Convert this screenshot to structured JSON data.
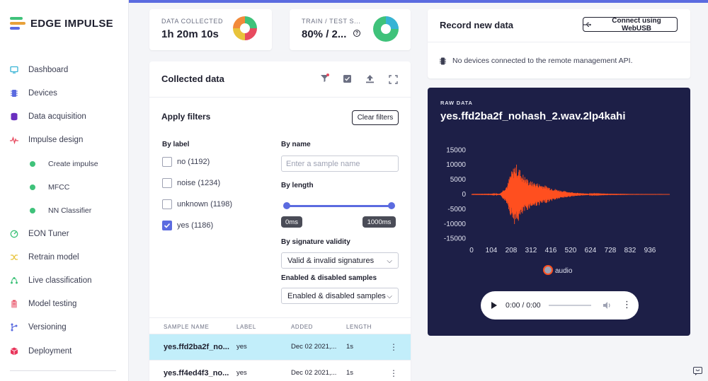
{
  "brand": {
    "name": "EDGE IMPULSE",
    "colors": [
      "#3fc27a",
      "#e8a13a",
      "#5b6be0"
    ]
  },
  "sidebar": {
    "items": [
      {
        "label": "Dashboard",
        "icon": "monitor-icon",
        "color": "#37b3d5"
      },
      {
        "label": "Devices",
        "icon": "chip-icon",
        "color": "#5b6be0"
      },
      {
        "label": "Data acquisition",
        "icon": "database-icon",
        "color": "#6a2fbf"
      },
      {
        "label": "Impulse design",
        "icon": "pulse-icon",
        "color": "#e84a5f"
      },
      {
        "label": "EON Tuner",
        "icon": "tuner-icon",
        "color": "#3fc27a"
      },
      {
        "label": "Retrain model",
        "icon": "shuffle-icon",
        "color": "#e8c33a"
      },
      {
        "label": "Live classification",
        "icon": "live-icon",
        "color": "#3fc27a"
      },
      {
        "label": "Model testing",
        "icon": "clipboard-icon",
        "color": "#e84a5f"
      },
      {
        "label": "Versioning",
        "icon": "branch-icon",
        "color": "#5b6be0"
      },
      {
        "label": "Deployment",
        "icon": "box-icon",
        "color": "#e8345a"
      }
    ],
    "sub_items": [
      {
        "label": "Create impulse"
      },
      {
        "label": "MFCC"
      },
      {
        "label": "NN Classifier"
      }
    ]
  },
  "stats": {
    "data_collected_label": "DATA COLLECTED",
    "data_collected_value": "1h 20m 10s",
    "train_test_label": "TRAIN / TEST S...",
    "train_test_value": "80% / 2...",
    "help_glyph": "?"
  },
  "collected": {
    "title": "Collected data",
    "filters_title": "Apply filters",
    "clear_filters": "Clear filters",
    "by_label": "By label",
    "labels": [
      {
        "text": "no (1192)",
        "checked": false
      },
      {
        "text": "noise (1234)",
        "checked": false
      },
      {
        "text": "unknown (1198)",
        "checked": false
      },
      {
        "text": "yes (1186)",
        "checked": true
      }
    ],
    "by_name": "By name",
    "name_placeholder": "Enter a sample name",
    "by_length": "By length",
    "length_min": "0ms",
    "length_max": "1000ms",
    "by_signature": "By signature validity",
    "signature_value": "Valid & invalid signatures",
    "enabled_label": "Enabled & disabled samples",
    "enabled_value": "Enabled & disabled samples",
    "table": {
      "headers": [
        "SAMPLE NAME",
        "LABEL",
        "ADDED",
        "LENGTH"
      ],
      "rows": [
        {
          "name": "yes.ffd2ba2f_no...",
          "label": "yes",
          "added": "Dec 02 2021,...",
          "length": "1s",
          "selected": true
        },
        {
          "name": "yes.ff4ed4f3_no...",
          "label": "yes",
          "added": "Dec 02 2021,...",
          "length": "1s",
          "selected": false
        }
      ]
    }
  },
  "record": {
    "title": "Record new data",
    "connect_button": "Connect using WebUSB",
    "no_devices": "No devices connected to the remote management API."
  },
  "raw_data": {
    "label": "RAW DATA",
    "sample_name": "yes.ffd2ba2f_nohash_2.wav.2lp4kahi",
    "legend": "audio",
    "player_time": "0:00 / 0:00",
    "series_color": "#ff4f1f"
  },
  "chart_data": {
    "type": "line",
    "title": "",
    "xlabel": "",
    "ylabel": "",
    "x_ticks": [
      0,
      104,
      208,
      312,
      416,
      520,
      624,
      728,
      832,
      936
    ],
    "y_ticks": [
      15000,
      10000,
      5000,
      0,
      -5000,
      -10000,
      -15000
    ],
    "ylim": [
      -17000,
      17000
    ],
    "xlim": [
      0,
      1040
    ],
    "series": [
      {
        "name": "audio",
        "x": [
          0,
          104,
          150,
          190,
          200,
          215,
          230,
          250,
          270,
          290,
          312,
          350,
          380,
          416,
          450,
          480,
          520,
          560,
          600,
          624,
          680,
          728,
          800,
          832,
          900,
          936,
          990,
          1040
        ],
        "amplitude": [
          60,
          80,
          300,
          3500,
          6500,
          8500,
          10800,
          9000,
          7000,
          5500,
          4500,
          3800,
          3200,
          2400,
          1700,
          1200,
          800,
          500,
          300,
          200,
          120,
          80,
          60,
          40,
          30,
          25,
          20,
          15
        ]
      }
    ]
  }
}
